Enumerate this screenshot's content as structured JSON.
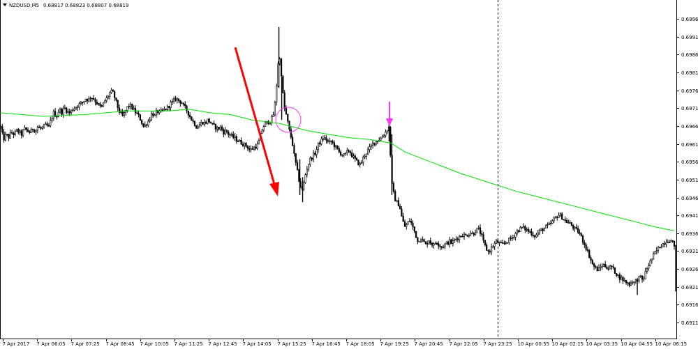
{
  "header": {
    "symbol": "NZDUSD,M5",
    "ohlc": "0.68817 0.68823 0.68807 0.68819"
  },
  "colors": {
    "background": "#ffffff",
    "candle": "#000000",
    "ma_line": "#00dd00",
    "arrow_red": "#ff0000",
    "marker_magenta": "#ff33ff"
  },
  "chart_data": {
    "type": "candlestick",
    "title": "NZDUSD,M5",
    "y_tick_labels": [
      "0.69963",
      "0.69913",
      "0.69863",
      "0.69813",
      "0.69763",
      "0.69713",
      "0.69663",
      "0.69613",
      "0.69563",
      "0.69513",
      "0.69463",
      "0.69413",
      "0.69363",
      "0.69313",
      "0.69263",
      "0.69213",
      "0.69163",
      "0.69113"
    ],
    "y_range": [
      0.69113,
      0.69963
    ],
    "x_tick_labels": [
      "7 Apr 2017",
      "7 Apr 06:05",
      "7 Apr 07:25",
      "7 Apr 08:45",
      "7 Apr 10:05",
      "7 Apr 11:25",
      "7 Apr 12:45",
      "7 Apr 14:05",
      "7 Apr 15:25",
      "7 Apr 16:45",
      "7 Apr 18:05",
      "7 Apr 19:25",
      "7 Apr 20:45",
      "7 Apr 22:05",
      "7 Apr 23:25",
      "10 Apr 00:55",
      "10 Apr 02:15",
      "10 Apr 03:35",
      "10 Apr 04:55",
      "10 Apr 06:15"
    ],
    "price_path": [
      [
        0,
        0.6966
      ],
      [
        4,
        0.69625
      ],
      [
        8,
        0.6964
      ],
      [
        11,
        0.6963
      ],
      [
        15,
        0.69645
      ],
      [
        19,
        0.6964
      ],
      [
        23,
        0.6965
      ],
      [
        27,
        0.69645
      ],
      [
        30,
        0.6964
      ],
      [
        34,
        0.69655
      ],
      [
        38,
        0.6965
      ],
      [
        42,
        0.69645
      ],
      [
        46,
        0.69655
      ],
      [
        50,
        0.6965
      ],
      [
        53,
        0.6966
      ],
      [
        57,
        0.69655
      ],
      [
        61,
        0.6966
      ],
      [
        65,
        0.69665
      ],
      [
        69,
        0.6966
      ],
      [
        72,
        0.6968
      ],
      [
        76,
        0.697
      ],
      [
        80,
        0.6969
      ],
      [
        84,
        0.6971
      ],
      [
        88,
        0.697
      ],
      [
        91,
        0.69715
      ],
      [
        95,
        0.69705
      ],
      [
        99,
        0.697
      ],
      [
        103,
        0.6971
      ],
      [
        107,
        0.69715
      ],
      [
        110,
        0.6972
      ],
      [
        114,
        0.69725
      ],
      [
        118,
        0.6973
      ],
      [
        122,
        0.6974
      ],
      [
        126,
        0.69735
      ],
      [
        129,
        0.69745
      ],
      [
        133,
        0.6974
      ],
      [
        137,
        0.6973
      ],
      [
        141,
        0.6972
      ],
      [
        145,
        0.69715
      ],
      [
        148,
        0.6973
      ],
      [
        152,
        0.6974
      ],
      [
        156,
        0.69755
      ],
      [
        160,
        0.6976
      ],
      [
        164,
        0.6974
      ],
      [
        167,
        0.6972
      ],
      [
        171,
        0.697
      ],
      [
        175,
        0.6969
      ],
      [
        179,
        0.69705
      ],
      [
        183,
        0.6972
      ],
      [
        186,
        0.6972
      ],
      [
        190,
        0.6971
      ],
      [
        194,
        0.697
      ],
      [
        198,
        0.6969
      ],
      [
        202,
        0.69675
      ],
      [
        205,
        0.6966
      ],
      [
        209,
        0.6967
      ],
      [
        213,
        0.6968
      ],
      [
        217,
        0.697
      ],
      [
        221,
        0.6969
      ],
      [
        224,
        0.69705
      ],
      [
        228,
        0.697
      ],
      [
        232,
        0.69705
      ],
      [
        236,
        0.6971
      ],
      [
        240,
        0.69715
      ],
      [
        243,
        0.69725
      ],
      [
        247,
        0.6973
      ],
      [
        251,
        0.6974
      ],
      [
        255,
        0.69735
      ],
      [
        259,
        0.6973
      ],
      [
        262,
        0.6972
      ],
      [
        266,
        0.6971
      ],
      [
        270,
        0.69695
      ],
      [
        274,
        0.6968
      ],
      [
        278,
        0.6967
      ],
      [
        281,
        0.6966
      ],
      [
        285,
        0.69665
      ],
      [
        289,
        0.69675
      ],
      [
        293,
        0.6967
      ],
      [
        297,
        0.6968
      ],
      [
        300,
        0.69675
      ],
      [
        304,
        0.69665
      ],
      [
        308,
        0.6966
      ],
      [
        312,
        0.69655
      ],
      [
        316,
        0.6966
      ],
      [
        319,
        0.69645
      ],
      [
        323,
        0.6965
      ],
      [
        327,
        0.6964
      ],
      [
        331,
        0.69635
      ],
      [
        335,
        0.6963
      ],
      [
        338,
        0.69625
      ],
      [
        342,
        0.6962
      ],
      [
        346,
        0.69615
      ],
      [
        350,
        0.6961
      ],
      [
        354,
        0.69605
      ],
      [
        357,
        0.69595
      ],
      [
        361,
        0.696
      ],
      [
        365,
        0.69605
      ],
      [
        369,
        0.6961
      ],
      [
        373,
        0.6964
      ],
      [
        376,
        0.6966
      ],
      [
        380,
        0.6967
      ],
      [
        384,
        0.69675
      ],
      [
        388,
        0.6968
      ],
      [
        392,
        0.697
      ],
      [
        395,
        0.6976
      ],
      [
        399,
        0.6987
      ],
      [
        403,
        0.698
      ],
      [
        406,
        0.6972
      ],
      [
        410,
        0.6969
      ],
      [
        414,
        0.6965
      ],
      [
        418,
        0.6962
      ],
      [
        421,
        0.6958
      ],
      [
        425,
        0.6954
      ],
      [
        429,
        0.695
      ],
      [
        433,
        0.6948
      ],
      [
        436,
        0.6952
      ],
      [
        440,
        0.6955
      ],
      [
        444,
        0.6957
      ],
      [
        448,
        0.6958
      ],
      [
        452,
        0.6959
      ],
      [
        455,
        0.6961
      ],
      [
        459,
        0.6962
      ],
      [
        463,
        0.6963
      ],
      [
        467,
        0.69625
      ],
      [
        470,
        0.69615
      ],
      [
        474,
        0.6962
      ],
      [
        478,
        0.6961
      ],
      [
        482,
        0.696
      ],
      [
        485,
        0.6959
      ],
      [
        489,
        0.69585
      ],
      [
        493,
        0.6958
      ],
      [
        497,
        0.6959
      ],
      [
        500,
        0.69595
      ],
      [
        504,
        0.6958
      ],
      [
        508,
        0.6957
      ],
      [
        512,
        0.6956
      ],
      [
        516,
        0.69555
      ],
      [
        519,
        0.6957
      ],
      [
        523,
        0.69585
      ],
      [
        527,
        0.69595
      ],
      [
        531,
        0.69605
      ],
      [
        534,
        0.69615
      ],
      [
        538,
        0.6962
      ],
      [
        542,
        0.69625
      ],
      [
        546,
        0.6963
      ],
      [
        550,
        0.6964
      ],
      [
        553,
        0.6965
      ],
      [
        557,
        0.6966
      ],
      [
        561,
        0.695
      ],
      [
        565,
        0.6946
      ],
      [
        568,
        0.6945
      ],
      [
        572,
        0.6944
      ],
      [
        576,
        0.694
      ],
      [
        580,
        0.6938
      ],
      [
        583,
        0.6939
      ],
      [
        587,
        0.694
      ],
      [
        591,
        0.6938
      ],
      [
        595,
        0.6936
      ],
      [
        598,
        0.6934
      ],
      [
        602,
        0.6935
      ],
      [
        606,
        0.6934
      ],
      [
        610,
        0.6933
      ],
      [
        614,
        0.69345
      ],
      [
        617,
        0.69335
      ],
      [
        621,
        0.6933
      ],
      [
        625,
        0.6934
      ],
      [
        629,
        0.6933
      ],
      [
        632,
        0.69325
      ],
      [
        636,
        0.6933
      ],
      [
        640,
        0.69335
      ],
      [
        644,
        0.6934
      ],
      [
        647,
        0.69335
      ],
      [
        651,
        0.69345
      ],
      [
        655,
        0.6935
      ],
      [
        659,
        0.69355
      ],
      [
        662,
        0.6936
      ],
      [
        666,
        0.69355
      ],
      [
        670,
        0.6936
      ],
      [
        674,
        0.69365
      ],
      [
        677,
        0.6936
      ],
      [
        681,
        0.6937
      ],
      [
        685,
        0.69375
      ],
      [
        689,
        0.6936
      ],
      [
        692,
        0.6934
      ],
      [
        696,
        0.6932
      ],
      [
        700,
        0.6931
      ],
      [
        703,
        0.6932
      ],
      [
        707,
        0.6933
      ],
      [
        711,
        0.6934
      ],
      [
        715,
        0.69335
      ],
      [
        718,
        0.6933
      ],
      [
        722,
        0.69335
      ],
      [
        726,
        0.6934
      ],
      [
        730,
        0.69345
      ],
      [
        733,
        0.6935
      ],
      [
        737,
        0.6936
      ],
      [
        741,
        0.6937
      ],
      [
        745,
        0.69375
      ],
      [
        748,
        0.6938
      ],
      [
        752,
        0.69375
      ],
      [
        756,
        0.6937
      ],
      [
        760,
        0.69365
      ],
      [
        763,
        0.6936
      ],
      [
        767,
        0.69355
      ],
      [
        771,
        0.69365
      ],
      [
        774,
        0.6937
      ],
      [
        778,
        0.69375
      ],
      [
        782,
        0.6938
      ],
      [
        786,
        0.69385
      ],
      [
        789,
        0.6939
      ],
      [
        793,
        0.694
      ],
      [
        797,
        0.6941
      ],
      [
        801,
        0.69415
      ],
      [
        804,
        0.6941
      ],
      [
        808,
        0.694
      ],
      [
        812,
        0.69395
      ],
      [
        816,
        0.6939
      ],
      [
        819,
        0.69385
      ],
      [
        823,
        0.69375
      ],
      [
        827,
        0.6937
      ],
      [
        831,
        0.6936
      ],
      [
        834,
        0.69345
      ],
      [
        838,
        0.6933
      ],
      [
        842,
        0.6931
      ],
      [
        846,
        0.6929
      ],
      [
        849,
        0.69275
      ],
      [
        853,
        0.69265
      ],
      [
        857,
        0.6926
      ],
      [
        861,
        0.6927
      ],
      [
        864,
        0.69275
      ],
      [
        868,
        0.6927
      ],
      [
        872,
        0.69265
      ],
      [
        876,
        0.6927
      ],
      [
        879,
        0.6926
      ],
      [
        883,
        0.6925
      ],
      [
        887,
        0.6924
      ],
      [
        891,
        0.69235
      ],
      [
        894,
        0.6923
      ],
      [
        898,
        0.69225
      ],
      [
        902,
        0.6922
      ],
      [
        906,
        0.6923
      ],
      [
        909,
        0.69225
      ],
      [
        913,
        0.69235
      ],
      [
        917,
        0.6924
      ],
      [
        921,
        0.6923
      ],
      [
        924,
        0.6925
      ],
      [
        928,
        0.6927
      ],
      [
        932,
        0.69285
      ],
      [
        936,
        0.693
      ],
      [
        939,
        0.6931
      ],
      [
        943,
        0.6932
      ],
      [
        947,
        0.6933
      ],
      [
        951,
        0.69335
      ],
      [
        954,
        0.6934
      ],
      [
        958,
        0.69345
      ],
      [
        962,
        0.6934
      ],
      [
        966,
        0.6933
      ],
      [
        968,
        0.6922
      ]
    ],
    "ma_path": [
      [
        0,
        0.697
      ],
      [
        60,
        0.6969
      ],
      [
        120,
        0.69695
      ],
      [
        180,
        0.69705
      ],
      [
        240,
        0.69705
      ],
      [
        270,
        0.6971
      ],
      [
        300,
        0.697
      ],
      [
        330,
        0.69695
      ],
      [
        360,
        0.6968
      ],
      [
        380,
        0.69675
      ],
      [
        400,
        0.6967
      ],
      [
        420,
        0.6966
      ],
      [
        440,
        0.6965
      ],
      [
        470,
        0.6964
      ],
      [
        500,
        0.6963
      ],
      [
        530,
        0.69625
      ],
      [
        560,
        0.69615
      ],
      [
        580,
        0.6959
      ],
      [
        620,
        0.6956
      ],
      [
        660,
        0.6953
      ],
      [
        700,
        0.69505
      ],
      [
        740,
        0.6948
      ],
      [
        780,
        0.6946
      ],
      [
        820,
        0.6944
      ],
      [
        860,
        0.6942
      ],
      [
        900,
        0.694
      ],
      [
        940,
        0.6938
      ],
      [
        966,
        0.6937
      ]
    ],
    "spikes": [
      [
        399,
        0.6977,
        0.6994
      ],
      [
        403,
        0.6968,
        0.698
      ],
      [
        429,
        0.6947,
        0.6957
      ],
      [
        433,
        0.6945,
        0.6952
      ],
      [
        557,
        0.6962,
        0.69675
      ],
      [
        561,
        0.6947,
        0.6964
      ],
      [
        913,
        0.6919,
        0.6923
      ],
      [
        968,
        0.692,
        0.6933
      ]
    ]
  }
}
